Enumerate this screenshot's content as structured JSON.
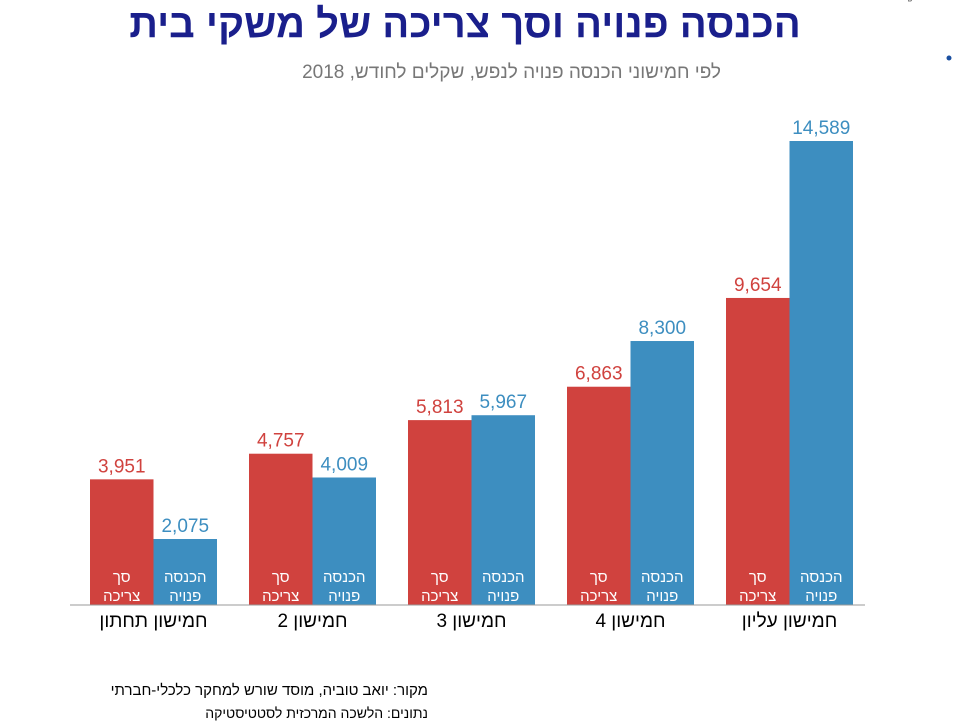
{
  "title": "הכנסה פנויה וסך צריכה של משקי בית",
  "subtitle": "לפי חמישוני הכנסה פנויה לנפש, שקלים לחודש, 2018",
  "logo": {
    "name": "שורש",
    "tagline": "מוסד שורש למחקר כלכלי-חברתי",
    "color": "#3a3a3a",
    "dot_color": "#1a4fa0"
  },
  "footer": {
    "source": "מקור:  יואב טוביה,  מוסד שורש למחקר כלכלי-חברתי",
    "data": "נתונים: הלשכה המרכזית לסטטיסטיקה"
  },
  "chart_data": {
    "type": "bar",
    "categories": [
      "חמישון תחתון",
      "חמישון 2",
      "חמישון 3",
      "חמישון 4",
      "חמישון עליון"
    ],
    "series": [
      {
        "name": "סך צריכה",
        "label_lines": [
          "סך",
          "צריכה"
        ],
        "color": "#d0423e",
        "values": [
          3951,
          4757,
          5813,
          6863,
          9654
        ]
      },
      {
        "name": "הכנסה פנויה",
        "label_lines": [
          "הכנסה",
          "פנויה"
        ],
        "color": "#3d8ec0",
        "values": [
          2075,
          4009,
          5967,
          8300,
          14589
        ]
      }
    ],
    "ylim": [
      0,
      14589
    ],
    "grid": false,
    "legend": "inside-bars"
  }
}
